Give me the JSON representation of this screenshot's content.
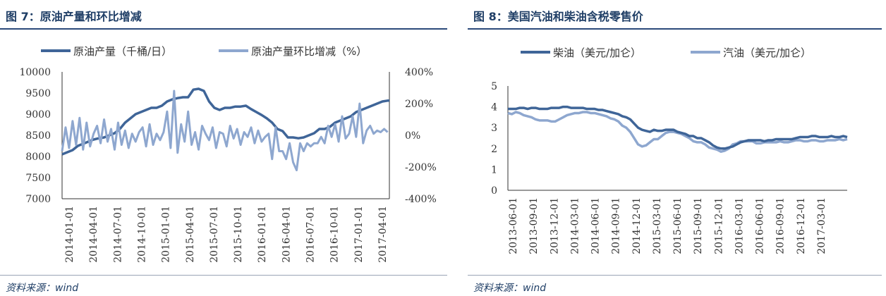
{
  "panels": [
    {
      "title": "图 7：原油产量和环比增减",
      "source": "资料来源：wind"
    },
    {
      "title": "图 8：美国汽油和柴油含税零售价",
      "source": "资料来源：wind"
    }
  ],
  "chart_data": [
    {
      "type": "line",
      "title": "图 7：原油产量和环比增减",
      "categories": [
        "2014-01-01",
        "2014-04-01",
        "2014-07-01",
        "2014-10-01",
        "2015-01-01",
        "2015-04-01",
        "2015-07-01",
        "2015-10-01",
        "2016-01-01",
        "2016-04-01",
        "2016-07-01",
        "2016-10-01",
        "2017-01-01",
        "2017-04-01"
      ],
      "y_left": {
        "min": 7000,
        "max": 10000,
        "ticks": [
          "7000",
          "7500",
          "8000",
          "8500",
          "9000",
          "9500",
          "10000"
        ]
      },
      "y_right": {
        "min": -400,
        "max": 400,
        "ticks": [
          "-400%",
          "-200%",
          "0%",
          "200%",
          "400%"
        ]
      },
      "grid": false,
      "legend_position": "top",
      "series": [
        {
          "name": "原油产量（千桶/日）",
          "axis": "left",
          "color": "#3f6598",
          "x": [
            0,
            3,
            6,
            9,
            12,
            15,
            18,
            21,
            24,
            27,
            30,
            33,
            36,
            39,
            42,
            45,
            48,
            51,
            54,
            57,
            60,
            63,
            66,
            69,
            72,
            75,
            78,
            81,
            84,
            87,
            90,
            93,
            96,
            99,
            102,
            105,
            108,
            111,
            114,
            117,
            120,
            123,
            126,
            129,
            132,
            135,
            138,
            141,
            144,
            147,
            150,
            153,
            156,
            159,
            162,
            165,
            168,
            171,
            174,
            177,
            180,
            183,
            186,
            187
          ],
          "values": [
            8050,
            8100,
            8150,
            8250,
            8300,
            8350,
            8400,
            8430,
            8450,
            8500,
            8550,
            8650,
            8800,
            8900,
            9000,
            9050,
            9100,
            9150,
            9150,
            9200,
            9300,
            9350,
            9380,
            9400,
            9400,
            9580,
            9600,
            9550,
            9300,
            9150,
            9100,
            9150,
            9150,
            9180,
            9180,
            9200,
            9120,
            9050,
            8980,
            8900,
            8800,
            8650,
            8600,
            8450,
            8450,
            8430,
            8450,
            8500,
            8550,
            8650,
            8650,
            8700,
            8800,
            8850,
            8900,
            8950,
            9050,
            9100,
            9150,
            9200,
            9250,
            9300,
            9320,
            9320
          ]
        },
        {
          "name": "原油产量环比增减（%）",
          "axis": "right",
          "color": "#8ea7cf",
          "x": [
            0,
            2,
            4,
            6,
            8,
            10,
            12,
            14,
            16,
            18,
            20,
            22,
            24,
            26,
            28,
            30,
            32,
            34,
            36,
            38,
            40,
            42,
            44,
            46,
            48,
            50,
            52,
            54,
            56,
            58,
            60,
            62,
            64,
            66,
            68,
            70,
            72,
            74,
            76,
            78,
            80,
            82,
            84,
            86,
            88,
            90,
            92,
            94,
            96,
            98,
            100,
            102,
            104,
            106,
            108,
            110,
            112,
            114,
            116,
            118,
            120,
            122,
            124,
            126,
            128,
            130,
            132,
            134,
            136,
            138,
            140,
            142,
            144,
            146,
            148,
            150,
            152,
            154,
            156,
            158,
            160,
            162,
            164,
            166,
            168,
            170,
            172,
            174,
            176,
            178,
            180,
            182,
            184,
            186
          ],
          "values": [
            -100,
            50,
            -80,
            90,
            -60,
            110,
            -90,
            80,
            -70,
            10,
            60,
            -50,
            100,
            -40,
            40,
            -90,
            80,
            -60,
            30,
            -80,
            10,
            -40,
            20,
            50,
            -70,
            70,
            -60,
            10,
            -30,
            20,
            150,
            -80,
            280,
            -110,
            70,
            -40,
            150,
            -60,
            20,
            -90,
            60,
            10,
            -30,
            50,
            -80,
            20,
            10,
            -70,
            60,
            -20,
            40,
            -60,
            20,
            -10,
            50,
            -50,
            30,
            -40,
            -10,
            10,
            -150,
            50,
            -100,
            -100,
            -150,
            -50,
            -170,
            -220,
            -50,
            -100,
            -50,
            -70,
            -50,
            -50,
            -10,
            -50,
            60,
            -10,
            70,
            -40,
            120,
            -20,
            10,
            120,
            -10,
            200,
            -50,
            30,
            60,
            10,
            30,
            20,
            40,
            20
          ]
        }
      ]
    },
    {
      "type": "line",
      "title": "图 8：美国汽油和柴油含税零售价",
      "categories": [
        "2013-06-01",
        "2013-09-01",
        "2013-12-01",
        "2014-03-01",
        "2014-06-01",
        "2014-09-01",
        "2014-12-01",
        "2015-03-01",
        "2015-06-01",
        "2015-09-01",
        "2015-12-01",
        "2016-03-01",
        "2016-06-01",
        "2016-09-01",
        "2016-12-01",
        "2017-03-01"
      ],
      "y": {
        "min": 0,
        "max": 5,
        "ticks": [
          "0",
          "1",
          "2",
          "3",
          "4",
          "5"
        ]
      },
      "grid": false,
      "legend_position": "top",
      "series": [
        {
          "name": "柴油（美元/加仑）",
          "color": "#3f6598",
          "x": [
            0,
            3,
            6,
            9,
            12,
            15,
            18,
            21,
            24,
            27,
            30,
            33,
            36,
            39,
            42,
            45,
            48,
            51,
            54,
            57,
            60,
            63,
            66,
            69,
            72,
            75,
            78,
            81,
            84,
            87,
            90,
            93,
            96,
            99,
            102,
            105,
            108,
            111,
            114,
            117,
            120,
            123,
            126,
            129,
            132,
            135,
            138,
            141,
            144,
            147,
            150,
            153,
            156,
            159,
            162,
            165,
            168,
            171,
            174,
            177,
            180,
            183,
            186,
            189,
            192,
            195,
            198,
            201,
            204,
            207,
            210,
            213,
            216,
            219,
            222,
            225,
            228,
            231,
            234,
            237,
            240,
            243,
            246,
            249,
            252,
            255,
            258
          ],
          "values": [
            3.9,
            3.9,
            3.9,
            3.95,
            3.95,
            3.9,
            3.95,
            3.95,
            3.9,
            3.9,
            3.9,
            3.95,
            3.95,
            3.95,
            4.0,
            4.0,
            3.95,
            3.95,
            3.95,
            3.95,
            3.9,
            3.9,
            3.9,
            3.85,
            3.85,
            3.8,
            3.75,
            3.7,
            3.65,
            3.55,
            3.5,
            3.4,
            3.2,
            3.0,
            2.9,
            2.85,
            2.8,
            2.9,
            2.85,
            2.85,
            2.9,
            2.9,
            2.9,
            2.8,
            2.75,
            2.7,
            2.6,
            2.6,
            2.5,
            2.5,
            2.4,
            2.3,
            2.15,
            2.05,
            2.0,
            2.0,
            2.05,
            2.1,
            2.2,
            2.3,
            2.35,
            2.4,
            2.4,
            2.4,
            2.4,
            2.35,
            2.4,
            2.4,
            2.45,
            2.45,
            2.45,
            2.45,
            2.45,
            2.5,
            2.55,
            2.55,
            2.55,
            2.6,
            2.6,
            2.55,
            2.55,
            2.55,
            2.6,
            2.55,
            2.55,
            2.6,
            2.55
          ]
        },
        {
          "name": "汽油（美元/加仑）",
          "color": "#8ea7cf",
          "x": [
            0,
            3,
            6,
            9,
            12,
            15,
            18,
            21,
            24,
            27,
            30,
            33,
            36,
            39,
            42,
            45,
            48,
            51,
            54,
            57,
            60,
            63,
            66,
            69,
            72,
            75,
            78,
            81,
            84,
            87,
            90,
            93,
            96,
            99,
            102,
            105,
            108,
            111,
            114,
            117,
            120,
            123,
            126,
            129,
            132,
            135,
            138,
            141,
            144,
            147,
            150,
            153,
            156,
            159,
            162,
            165,
            168,
            171,
            174,
            177,
            180,
            183,
            186,
            189,
            192,
            195,
            198,
            201,
            204,
            207,
            210,
            213,
            216,
            219,
            222,
            225,
            228,
            231,
            234,
            237,
            240,
            243,
            246,
            249,
            252,
            255,
            258
          ],
          "values": [
            3.7,
            3.65,
            3.75,
            3.7,
            3.6,
            3.55,
            3.5,
            3.4,
            3.35,
            3.35,
            3.35,
            3.3,
            3.3,
            3.4,
            3.5,
            3.6,
            3.65,
            3.7,
            3.7,
            3.75,
            3.75,
            3.7,
            3.7,
            3.65,
            3.6,
            3.55,
            3.45,
            3.4,
            3.3,
            3.1,
            3.0,
            2.8,
            2.5,
            2.2,
            2.1,
            2.15,
            2.3,
            2.45,
            2.45,
            2.6,
            2.75,
            2.8,
            2.8,
            2.75,
            2.7,
            2.6,
            2.5,
            2.35,
            2.3,
            2.3,
            2.2,
            2.05,
            2.0,
            1.95,
            1.85,
            1.9,
            2.0,
            2.2,
            2.25,
            2.35,
            2.35,
            2.35,
            2.35,
            2.25,
            2.25,
            2.3,
            2.3,
            2.3,
            2.3,
            2.35,
            2.3,
            2.3,
            2.35,
            2.4,
            2.4,
            2.35,
            2.35,
            2.4,
            2.4,
            2.35,
            2.35,
            2.4,
            2.4,
            2.4,
            2.45,
            2.4,
            2.45
          ]
        }
      ]
    }
  ]
}
